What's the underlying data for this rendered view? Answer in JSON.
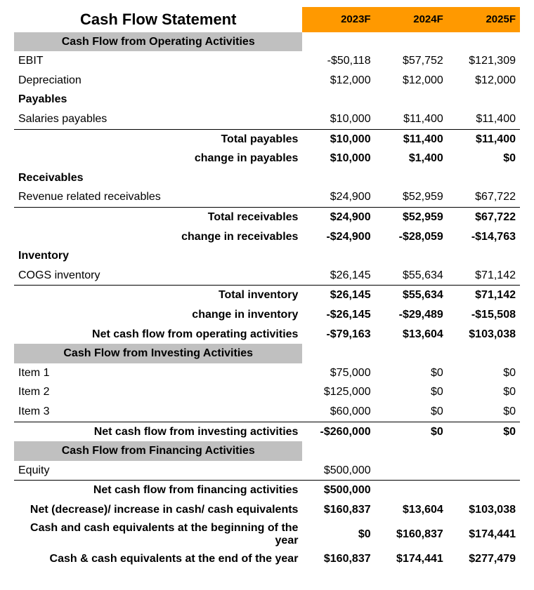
{
  "title": "Cash Flow Statement",
  "years": [
    "2023F",
    "2024F",
    "2025F"
  ],
  "colors": {
    "header_bg": "#ff9900",
    "section_bg": "#c0c0c0",
    "border": "#000000",
    "text": "#000000",
    "background": "#ffffff"
  },
  "sections": {
    "operating": {
      "header": "Cash Flow from Operating Activities",
      "ebit": {
        "label": "EBIT",
        "values": [
          "-$50,118",
          "$57,752",
          "$121,309"
        ]
      },
      "depreciation": {
        "label": "Depreciation",
        "values": [
          "$12,000",
          "$12,000",
          "$12,000"
        ]
      },
      "payables": {
        "header": "Payables",
        "salaries": {
          "label": "Salaries payables",
          "values": [
            "$10,000",
            "$11,400",
            "$11,400"
          ]
        },
        "total": {
          "label": "Total payables",
          "values": [
            "$10,000",
            "$11,400",
            "$11,400"
          ]
        },
        "change": {
          "label": "change in payables",
          "values": [
            "$10,000",
            "$1,400",
            "$0"
          ]
        }
      },
      "receivables": {
        "header": "Receivables",
        "revenue": {
          "label": "Revenue related receivables",
          "values": [
            "$24,900",
            "$52,959",
            "$67,722"
          ]
        },
        "total": {
          "label": "Total receivables",
          "values": [
            "$24,900",
            "$52,959",
            "$67,722"
          ]
        },
        "change": {
          "label": "change in receivables",
          "values": [
            "-$24,900",
            "-$28,059",
            "-$14,763"
          ]
        }
      },
      "inventory": {
        "header": "Inventory",
        "cogs": {
          "label": "COGS inventory",
          "values": [
            "$26,145",
            "$55,634",
            "$71,142"
          ]
        },
        "total": {
          "label": "Total inventory",
          "values": [
            "$26,145",
            "$55,634",
            "$71,142"
          ]
        },
        "change": {
          "label": "change in inventory",
          "values": [
            "-$26,145",
            "-$29,489",
            "-$15,508"
          ]
        }
      },
      "net": {
        "label": "Net cash flow from operating activities",
        "values": [
          "-$79,163",
          "$13,604",
          "$103,038"
        ]
      }
    },
    "investing": {
      "header": "Cash Flow from Investing Activities",
      "item1": {
        "label": "Item 1",
        "values": [
          "$75,000",
          "$0",
          "$0"
        ]
      },
      "item2": {
        "label": "Item 2",
        "values": [
          "$125,000",
          "$0",
          "$0"
        ]
      },
      "item3": {
        "label": "Item 3",
        "values": [
          "$60,000",
          "$0",
          "$0"
        ]
      },
      "net": {
        "label": "Net cash flow from investing activities",
        "values": [
          "-$260,000",
          "$0",
          "$0"
        ]
      }
    },
    "financing": {
      "header": "Cash Flow from Financing Activities",
      "equity": {
        "label": "Equity",
        "values": [
          "$500,000",
          "",
          ""
        ]
      },
      "net": {
        "label": "Net cash flow from financing activities",
        "values": [
          "$500,000",
          "",
          ""
        ]
      },
      "net_change": {
        "label": "Net (decrease)/ increase in cash/ cash equivalents",
        "values": [
          "$160,837",
          "$13,604",
          "$103,038"
        ]
      },
      "begin": {
        "label": "Cash and cash equivalents at the beginning of the year",
        "values": [
          "$0",
          "$160,837",
          "$174,441"
        ]
      },
      "end": {
        "label": "Cash & cash equivalents at the end of the year",
        "values": [
          "$160,837",
          "$174,441",
          "$277,479"
        ]
      }
    }
  }
}
